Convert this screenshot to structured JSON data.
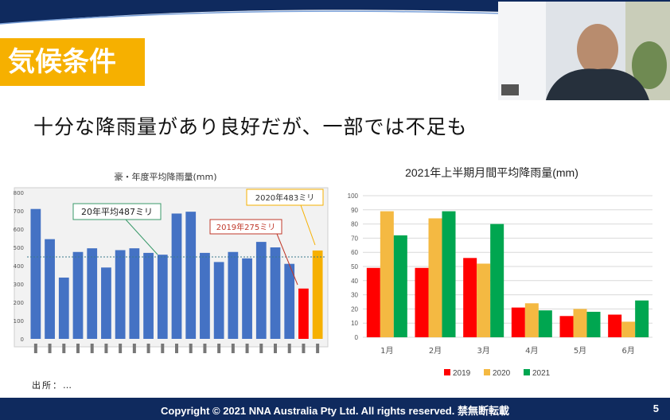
{
  "slide": {
    "section_title": "気候条件",
    "headline": "十分な降雨量があり良好だが、一部では不足も",
    "footer_copyright": "Copyright © 2021 NNA Australia Pty Ltd.  All rights reserved. 禁無断転載",
    "page_number": "5",
    "source_note": "出所：…"
  },
  "colors": {
    "navy": "#0f2a5e",
    "yellow": "#f6b000",
    "blue": "#4472c4",
    "red": "#ff0000",
    "gold": "#f4b942",
    "green": "#00a650"
  },
  "left_chart": {
    "title": "豪・年度平均降雨量(mm)",
    "annotations": [
      "20年平均487ミリ",
      "2019年275ミリ",
      "2020年483ミリ"
    ],
    "y_ticks": [
      "800",
      "700",
      "600",
      "500",
      "400",
      "300",
      "200",
      "100",
      "0"
    ]
  },
  "chart_data": {
    "type": "bar",
    "title": "2021年上半期月間平均降雨量(mm)",
    "categories": [
      "1月",
      "2月",
      "3月",
      "4月",
      "5月",
      "6月"
    ],
    "series": [
      {
        "name": "2019",
        "color": "#ff0000",
        "values": [
          49,
          49,
          56,
          21,
          15,
          16
        ]
      },
      {
        "name": "2020",
        "color": "#f4b942",
        "values": [
          89,
          84,
          52,
          24,
          20,
          11
        ]
      },
      {
        "name": "2021",
        "color": "#00a650",
        "values": [
          72,
          89,
          80,
          19,
          18,
          26
        ]
      }
    ],
    "ylim": [
      0,
      100
    ],
    "y_ticks": [
      "0",
      "10",
      "20",
      "30",
      "40",
      "50",
      "60",
      "70",
      "80",
      "90",
      "100"
    ],
    "grid": true,
    "legend": "bottom"
  },
  "left_chart_data": {
    "type": "bar",
    "ylim": [
      0,
      800
    ],
    "values": [
      710,
      545,
      335,
      475,
      495,
      390,
      485,
      495,
      470,
      460,
      685,
      695,
      470,
      420,
      475,
      440,
      530,
      500,
      410,
      275,
      483
    ],
    "highlight": {
      "19": "#ff0000",
      "20": "#f6b000"
    }
  }
}
